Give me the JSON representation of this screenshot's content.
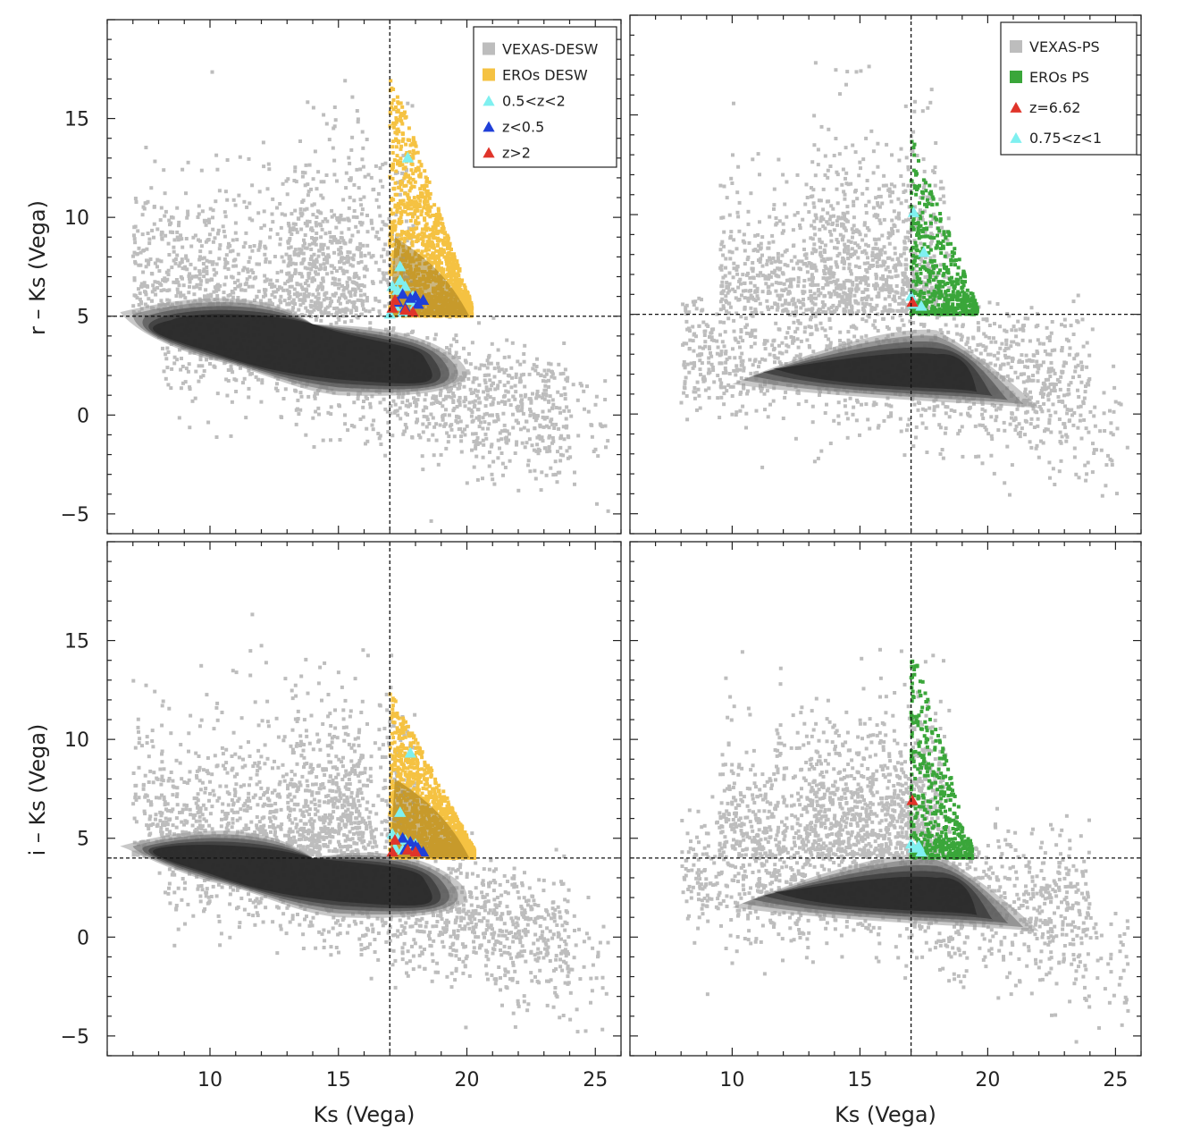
{
  "figure": {
    "background": "#ffffff",
    "colors": {
      "vexas": "#bdbdbd",
      "vexas_core": "#2a2a2a",
      "eros_desw": "#f5c242",
      "eros_ps": "#3aa63a",
      "cyan": "#7ff0f0",
      "blue": "#1f3fd8",
      "red": "#e0342a",
      "cut_line": "#111111"
    }
  },
  "chart_data": [
    {
      "id": "top-left",
      "type": "scatter",
      "xlabel": "",
      "ylabel": "r – Ks (Vega)",
      "xlim": [
        6,
        26
      ],
      "ylim": [
        -6,
        20
      ],
      "xticks": [
        10,
        15,
        20,
        25
      ],
      "yticks": [
        -5,
        0,
        5,
        10,
        15
      ],
      "show_xtick_labels": false,
      "show_ytick_labels": true,
      "cut_x": 17,
      "cut_y": 5,
      "legend_position": "top-right",
      "legend": [
        {
          "label": "VEXAS-DESW",
          "marker": "square",
          "color": "#bdbdbd"
        },
        {
          "label": "EROs DESW",
          "marker": "square",
          "color": "#f5c242"
        },
        {
          "label": "0.5<z<2",
          "marker": "triangle",
          "color": "#7ff0f0"
        },
        {
          "label": "z<0.5",
          "marker": "triangle",
          "color": "#1f3fd8"
        },
        {
          "label": "z>2",
          "marker": "triangle",
          "color": "#e0342a"
        }
      ],
      "background_cloud": {
        "name": "VEXAS-DESW",
        "color": "#bdbdbd",
        "ks_range": [
          6.5,
          25.5
        ],
        "color_range": [
          -5.5,
          17.5
        ]
      },
      "highlight_cloud": {
        "name": "EROs DESW",
        "color": "#f5c242",
        "ks_range": [
          17,
          20.2
        ],
        "color_range": [
          5,
          17.5
        ]
      },
      "markers": [
        {
          "series": "0.5<z<2",
          "color": "#7ff0f0",
          "x": [
            17.7,
            17.4,
            17.1,
            17.3,
            17.6,
            17.9,
            17.2,
            17.5,
            18.0,
            17.8,
            17.0,
            17.4
          ],
          "y": [
            13.0,
            7.5,
            6.5,
            6.3,
            6.5,
            6.0,
            5.5,
            5.2,
            5.6,
            5.8,
            5.1,
            6.8
          ]
        },
        {
          "series": "z<0.5",
          "color": "#1f3fd8",
          "x": [
            17.5,
            17.8,
            18.1,
            18.3,
            17.6,
            18.0,
            17.3
          ],
          "y": [
            6.1,
            5.9,
            5.6,
            5.8,
            5.4,
            6.0,
            5.7
          ]
        },
        {
          "series": "z>2",
          "color": "#e0342a",
          "x": [
            17.1,
            17.6,
            17.2,
            17.9
          ],
          "y": [
            5.4,
            5.3,
            5.8,
            5.2
          ]
        }
      ]
    },
    {
      "id": "top-right",
      "type": "scatter",
      "xlabel": "",
      "ylabel": "",
      "xlim": [
        6,
        26
      ],
      "ylim": [
        -6,
        20
      ],
      "xticks": [
        10,
        15,
        20,
        25
      ],
      "yticks": [
        -5,
        0,
        5,
        10,
        15
      ],
      "show_xtick_labels": false,
      "show_ytick_labels": false,
      "cut_x": 17,
      "cut_y": 5,
      "legend_position": "top-right",
      "legend": [
        {
          "label": "VEXAS-PS",
          "marker": "square",
          "color": "#bdbdbd"
        },
        {
          "label": "EROs PS",
          "marker": "square",
          "color": "#3aa63a"
        },
        {
          "label": "z=6.62",
          "marker": "triangle",
          "color": "#e0342a"
        },
        {
          "label": "0.75<z<1",
          "marker": "triangle",
          "color": "#7ff0f0"
        }
      ],
      "background_cloud": {
        "name": "VEXAS-PS",
        "color": "#bdbdbd",
        "ks_range": [
          8,
          25.8
        ],
        "color_range": [
          -5,
          18
        ]
      },
      "highlight_cloud": {
        "name": "EROs PS",
        "color": "#3aa63a",
        "ks_range": [
          17,
          19.6
        ],
        "color_range": [
          5,
          14
        ]
      },
      "markers": [
        {
          "series": "0.75<z<1",
          "color": "#7ff0f0",
          "x": [
            17.1,
            17.5,
            17.1,
            17.4,
            17.0
          ],
          "y": [
            10.1,
            8.1,
            5.5,
            5.4,
            5.9
          ]
        },
        {
          "series": "z=6.62",
          "color": "#e0342a",
          "x": [
            17.05
          ],
          "y": [
            5.6
          ]
        }
      ]
    },
    {
      "id": "bottom-left",
      "type": "scatter",
      "xlabel": "Ks (Vega)",
      "ylabel": "i – Ks (Vega)",
      "xlim": [
        6,
        26
      ],
      "ylim": [
        -6,
        20
      ],
      "xticks": [
        10,
        15,
        20,
        25
      ],
      "yticks": [
        -5,
        0,
        5,
        10,
        15
      ],
      "show_xtick_labels": true,
      "show_ytick_labels": true,
      "cut_x": 17,
      "cut_y": 4,
      "legend_position": "none",
      "legend": [],
      "background_cloud": {
        "name": "VEXAS-DESW",
        "color": "#bdbdbd",
        "ks_range": [
          6.5,
          25.8
        ],
        "color_range": [
          -5.5,
          16.5
        ]
      },
      "highlight_cloud": {
        "name": "EROs DESW",
        "color": "#f5c242",
        "ks_range": [
          17,
          20.3
        ],
        "color_range": [
          4,
          12.5
        ]
      },
      "markers": [
        {
          "series": "0.5<z<2",
          "color": "#7ff0f0",
          "x": [
            17.8,
            17.4,
            17.1,
            17.3,
            17.6,
            17.9,
            17.2,
            17.5,
            18.0
          ],
          "y": [
            9.3,
            6.3,
            5.2,
            5.0,
            4.9,
            4.6,
            4.5,
            4.4,
            4.7
          ]
        },
        {
          "series": "z<0.5",
          "color": "#1f3fd8",
          "x": [
            17.5,
            17.8,
            18.1,
            18.3,
            17.6,
            18.0
          ],
          "y": [
            5.0,
            4.8,
            4.5,
            4.3,
            4.4,
            4.6
          ]
        },
        {
          "series": "z>2",
          "color": "#e0342a",
          "x": [
            17.1,
            17.7,
            17.2,
            18.0
          ],
          "y": [
            4.3,
            4.4,
            4.9,
            4.3
          ]
        }
      ]
    },
    {
      "id": "bottom-right",
      "type": "scatter",
      "xlabel": "Ks (Vega)",
      "ylabel": "",
      "xlim": [
        6,
        26
      ],
      "ylim": [
        -6,
        20
      ],
      "xticks": [
        10,
        15,
        20,
        25
      ],
      "yticks": [
        -5,
        0,
        5,
        10,
        15
      ],
      "show_xtick_labels": true,
      "show_ytick_labels": false,
      "cut_x": 17,
      "cut_y": 4,
      "legend_position": "none",
      "legend": [],
      "background_cloud": {
        "name": "VEXAS-PS",
        "color": "#bdbdbd",
        "ks_range": [
          8,
          25.8
        ],
        "color_range": [
          -5.5,
          15.5
        ]
      },
      "highlight_cloud": {
        "name": "EROs PS",
        "color": "#3aa63a",
        "ks_range": [
          17,
          19.4
        ],
        "color_range": [
          4,
          15
        ]
      },
      "markers": [
        {
          "series": "0.75<z<1",
          "color": "#7ff0f0",
          "x": [
            17.1,
            17.4,
            17.0,
            17.3
          ],
          "y": [
            4.5,
            4.3,
            4.7,
            4.6
          ]
        },
        {
          "series": "z=6.62",
          "color": "#e0342a",
          "x": [
            17.05
          ],
          "y": [
            6.9
          ]
        }
      ]
    }
  ]
}
